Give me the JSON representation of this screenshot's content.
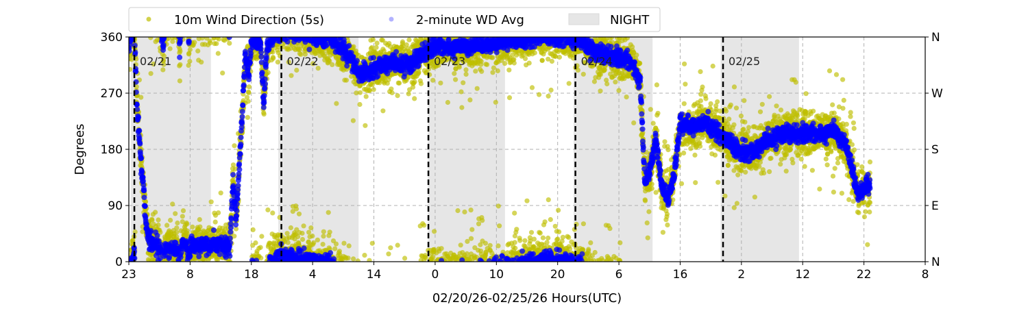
{
  "chart_data": {
    "type": "scatter",
    "title": "",
    "xlabel": "02/20/26-02/25/26  Hours(UTC)",
    "ylabel": "Degrees",
    "xlim_hours": [
      0,
      130
    ],
    "ylim": [
      0,
      360
    ],
    "yticks": [
      0,
      90,
      180,
      270,
      360
    ],
    "ytick_labels": [
      "0",
      "90",
      "180",
      "270",
      "360"
    ],
    "right_ytick_labels": [
      "N",
      "E",
      "S",
      "W",
      "N"
    ],
    "xtick_labels": [
      "23",
      "8",
      "18",
      "4",
      "14",
      "0",
      "10",
      "20",
      "6",
      "16",
      "2",
      "12",
      "22",
      "8"
    ],
    "grid": true,
    "legend": {
      "placement": "top",
      "entries": [
        {
          "label": "10m Wind Direction (5s)",
          "color": "#bfbf00"
        },
        {
          "label": "2-minute WD Avg",
          "color": "#0000ff"
        },
        {
          "label": "NIGHT",
          "color": "#e6e6e6"
        }
      ]
    },
    "day_markers": [
      {
        "label": "02/21",
        "hour": 0.9
      },
      {
        "label": "02/22",
        "hour": 24.9
      },
      {
        "label": "02/23",
        "hour": 48.9
      },
      {
        "label": "02/24",
        "hour": 72.9
      },
      {
        "label": "02/25",
        "hour": 97.0
      }
    ],
    "night_periods_hours": [
      [
        0.3,
        13.4
      ],
      [
        24.4,
        37.5
      ],
      [
        48.8,
        61.4
      ],
      [
        72.6,
        85.5
      ],
      [
        96.6,
        109.4
      ]
    ],
    "series": [
      {
        "name": "2-minute WD Avg",
        "color": "#0000ff",
        "trend_hours_degrees_unwrapped": [
          [
            0,
            345
          ],
          [
            0.9,
            375
          ],
          [
            1.3,
            250
          ],
          [
            2.2,
            140
          ],
          [
            3,
            40
          ],
          [
            4.5,
            25
          ],
          [
            5.3,
            20
          ],
          [
            5.6,
            -20
          ],
          [
            5.9,
            20
          ],
          [
            8,
            20
          ],
          [
            8.3,
            -15
          ],
          [
            8.6,
            25
          ],
          [
            9.5,
            30
          ],
          [
            9.8,
            -10
          ],
          [
            10.1,
            25
          ],
          [
            13,
            25
          ],
          [
            15,
            30
          ],
          [
            16.5,
            20
          ],
          [
            17,
            130
          ],
          [
            17.5,
            60
          ],
          [
            18,
            150
          ],
          [
            18.5,
            230
          ],
          [
            19,
            330
          ],
          [
            19.6,
            300
          ],
          [
            20,
            350
          ],
          [
            21.5,
            355
          ],
          [
            22,
            250
          ],
          [
            22.5,
            340
          ],
          [
            23,
            355
          ],
          [
            25,
            370
          ],
          [
            28,
            365
          ],
          [
            30,
            360
          ],
          [
            33,
            355
          ],
          [
            36,
            330
          ],
          [
            37.5,
            300
          ],
          [
            40,
            310
          ],
          [
            43,
            320
          ],
          [
            46,
            315
          ],
          [
            48,
            335
          ],
          [
            50,
            345
          ],
          [
            55,
            345
          ],
          [
            60,
            350
          ],
          [
            65,
            358
          ],
          [
            70,
            362
          ],
          [
            74,
            355
          ],
          [
            76,
            335
          ],
          [
            79,
            330
          ],
          [
            82,
            320
          ],
          [
            83.5,
            290
          ],
          [
            84.2,
            130
          ],
          [
            85,
            140
          ],
          [
            86,
            200
          ],
          [
            87,
            120
          ],
          [
            88,
            100
          ],
          [
            89,
            140
          ],
          [
            90,
            220
          ],
          [
            92,
            215
          ],
          [
            94,
            225
          ],
          [
            97,
            200
          ],
          [
            99,
            180
          ],
          [
            102,
            175
          ],
          [
            104,
            195
          ],
          [
            107,
            205
          ],
          [
            112,
            205
          ],
          [
            115,
            210
          ],
          [
            117,
            190
          ],
          [
            119,
            110
          ],
          [
            121,
            125
          ]
        ]
      },
      {
        "name": "10m Wind Direction (5s)",
        "color": "#bfbf00",
        "spread_degrees": 18
      }
    ]
  }
}
